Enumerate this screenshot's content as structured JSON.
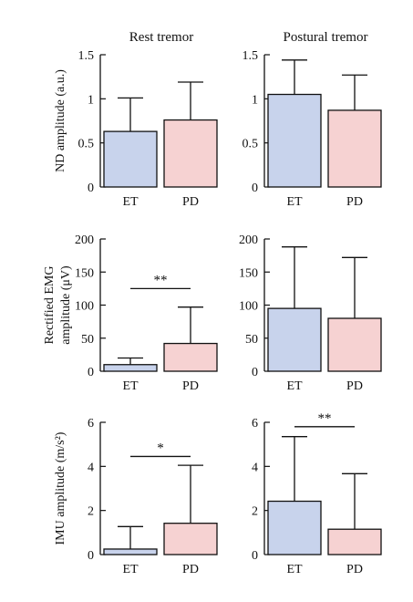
{
  "colors": {
    "et": "#c8d3ec",
    "pd": "#f6d2d2",
    "stroke": "#111111"
  },
  "column_titles": [
    "Rest tremor",
    "Postural tremor"
  ],
  "row_ylabels": [
    {
      "lines": [
        "ND amplitude (a.u.)"
      ]
    },
    {
      "lines": [
        "Rectified EMG",
        "amplitude (μV)"
      ]
    },
    {
      "lines": [
        "IMU amplitude (m/s²)"
      ]
    }
  ],
  "chart_data": [
    {
      "type": "bar",
      "title": "Rest tremor",
      "ylabel": "ND amplitude (a.u.)",
      "categories": [
        "ET",
        "PD"
      ],
      "values": [
        0.63,
        0.76
      ],
      "errors": [
        0.38,
        0.43
      ],
      "ylim": [
        0,
        1.5
      ],
      "yticks": [
        "0",
        "0.5",
        "1",
        "1.5"
      ],
      "significance": null
    },
    {
      "type": "bar",
      "title": "Postural tremor",
      "ylabel": "",
      "categories": [
        "ET",
        "PD"
      ],
      "values": [
        1.05,
        0.87
      ],
      "errors": [
        0.39,
        0.4
      ],
      "ylim": [
        0,
        1.5
      ],
      "yticks": [
        "0",
        "0.5",
        "1",
        "1.5"
      ],
      "significance": null
    },
    {
      "type": "bar",
      "title": "",
      "ylabel": "Rectified EMG amplitude (μV)",
      "categories": [
        "ET",
        "PD"
      ],
      "values": [
        10,
        42
      ],
      "errors": [
        10,
        55
      ],
      "ylim": [
        0,
        200
      ],
      "yticks": [
        "0",
        "50",
        "100",
        "150",
        "200"
      ],
      "significance": {
        "label": "**",
        "y": 125
      }
    },
    {
      "type": "bar",
      "title": "",
      "ylabel": "",
      "categories": [
        "ET",
        "PD"
      ],
      "values": [
        95,
        80
      ],
      "errors": [
        93,
        92
      ],
      "ylim": [
        0,
        200
      ],
      "yticks": [
        "0",
        "50",
        "100",
        "150",
        "200"
      ],
      "significance": null
    },
    {
      "type": "bar",
      "title": "",
      "ylabel": "IMU amplitude (m/s²)",
      "categories": [
        "ET",
        "PD"
      ],
      "values": [
        0.25,
        1.42
      ],
      "errors": [
        1.02,
        2.63
      ],
      "ylim": [
        0,
        6
      ],
      "yticks": [
        "0",
        "2",
        "4",
        "6"
      ],
      "significance": {
        "label": "*",
        "y": 4.45
      }
    },
    {
      "type": "bar",
      "title": "",
      "ylabel": "",
      "categories": [
        "ET",
        "PD"
      ],
      "values": [
        2.42,
        1.15
      ],
      "errors": [
        2.93,
        2.52
      ],
      "ylim": [
        0,
        6
      ],
      "yticks": [
        "0",
        "2",
        "4",
        "6"
      ],
      "significance": {
        "label": "**",
        "y": 5.8
      }
    }
  ]
}
